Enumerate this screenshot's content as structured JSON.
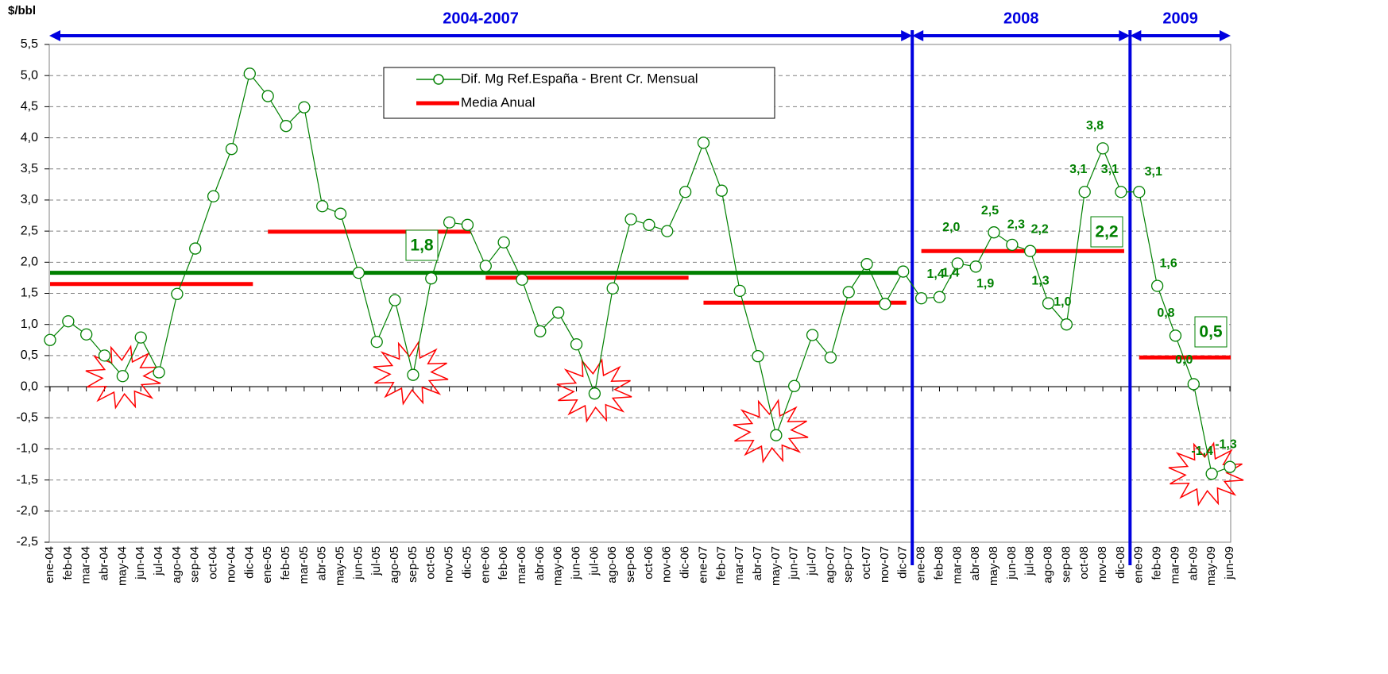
{
  "chart_data": {
    "type": "line",
    "y_label": "$/bbl",
    "categories": [
      "ene-04",
      "feb-04",
      "mar-04",
      "abr-04",
      "may-04",
      "jun-04",
      "jul-04",
      "ago-04",
      "sep-04",
      "oct-04",
      "nov-04",
      "dic-04",
      "ene-05",
      "feb-05",
      "mar-05",
      "abr-05",
      "may-05",
      "jun-05",
      "jul-05",
      "ago-05",
      "sep-05",
      "oct-05",
      "nov-05",
      "dic-05",
      "ene-06",
      "feb-06",
      "mar-06",
      "abr-06",
      "may-06",
      "jun-06",
      "jul-06",
      "ago-06",
      "sep-06",
      "oct-06",
      "nov-06",
      "dic-06",
      "ene-07",
      "feb-07",
      "mar-07",
      "abr-07",
      "may-07",
      "jun-07",
      "jul-07",
      "ago-07",
      "sep-07",
      "oct-07",
      "nov-07",
      "dic-07",
      "ene-08",
      "feb-08",
      "mar-08",
      "abr-08",
      "may-08",
      "jun-08",
      "jul-08",
      "ago-08",
      "sep-08",
      "oct-08",
      "nov-08",
      "dic-08",
      "ene-09",
      "feb-09",
      "mar-09",
      "abr-09",
      "may-09",
      "jun-09"
    ],
    "series": [
      {
        "name": "Dif. Mg Ref.España - Brent Cr. Mensual",
        "color": "#008000",
        "values": [
          0.75,
          1.05,
          0.84,
          0.5,
          0.17,
          0.79,
          0.23,
          1.49,
          2.22,
          3.06,
          3.82,
          5.03,
          4.67,
          4.19,
          4.49,
          2.9,
          2.78,
          1.83,
          0.72,
          1.39,
          0.19,
          1.74,
          2.64,
          2.6,
          1.94,
          2.32,
          1.72,
          0.89,
          1.19,
          0.68,
          -0.11,
          1.58,
          2.69,
          2.6,
          2.5,
          3.13,
          3.92,
          3.15,
          1.54,
          0.49,
          -0.78,
          0.01,
          0.83,
          0.47,
          1.52,
          1.97,
          1.33,
          1.85,
          1.42,
          1.44,
          1.98,
          1.93,
          2.48,
          2.28,
          2.18,
          1.34,
          1.0,
          3.13,
          3.83,
          3.13,
          3.13,
          1.62,
          0.82,
          0.04,
          -1.4,
          -1.29
        ],
        "value_labels": [
          null,
          null,
          null,
          null,
          null,
          null,
          null,
          null,
          null,
          null,
          null,
          null,
          null,
          null,
          null,
          null,
          null,
          null,
          null,
          null,
          null,
          null,
          null,
          null,
          null,
          null,
          null,
          null,
          null,
          null,
          null,
          null,
          null,
          null,
          null,
          null,
          null,
          null,
          null,
          null,
          null,
          null,
          null,
          null,
          null,
          null,
          null,
          null,
          "1,4",
          "1,4",
          "2,0",
          "1,9",
          "2,5",
          "2,3",
          "2,2",
          "1,3",
          "1,0",
          "3,1",
          "3,8",
          "3,1",
          "3,1",
          "1,6",
          "0,8",
          "0,0",
          "-1,4",
          "-1,3"
        ]
      }
    ],
    "annual_means": {
      "name": "Media Anual",
      "color": "#ff0000",
      "values": [
        1.65,
        2.49,
        1.75,
        1.35,
        2.18,
        0.47
      ],
      "value_labels": [
        null,
        null,
        null,
        null,
        "2,2",
        "0,5"
      ]
    },
    "periods": [
      {
        "name": "2004-2007",
        "mean": 1.83,
        "mean_label": "1,8",
        "color": "#008000"
      },
      {
        "name": "2008"
      },
      {
        "name": "2009"
      }
    ],
    "ylim": [
      -2.5,
      5.5
    ],
    "yticks": [
      {
        "value": 5.5,
        "label": "5,5"
      },
      {
        "value": 5,
        "label": "5,0"
      },
      {
        "value": 4.5,
        "label": "4,5"
      },
      {
        "value": 4,
        "label": "4,0"
      },
      {
        "value": 3.5,
        "label": "3,5"
      },
      {
        "value": 3,
        "label": "3,0"
      },
      {
        "value": 2.5,
        "label": "2,5"
      },
      {
        "value": 2,
        "label": "2,0"
      },
      {
        "value": 1.5,
        "label": "1,5"
      },
      {
        "value": 1,
        "label": "1,0"
      },
      {
        "value": 0.5,
        "label": "0,5"
      },
      {
        "value": 0,
        "label": "0,0"
      },
      {
        "value": -0.5,
        "label": "-0,5"
      },
      {
        "value": -1,
        "label": "-1,0"
      },
      {
        "value": -1.5,
        "label": "-1,5"
      },
      {
        "value": -2,
        "label": "-2,0"
      },
      {
        "value": -2.5,
        "label": "-2,5"
      }
    ],
    "grid": true
  }
}
